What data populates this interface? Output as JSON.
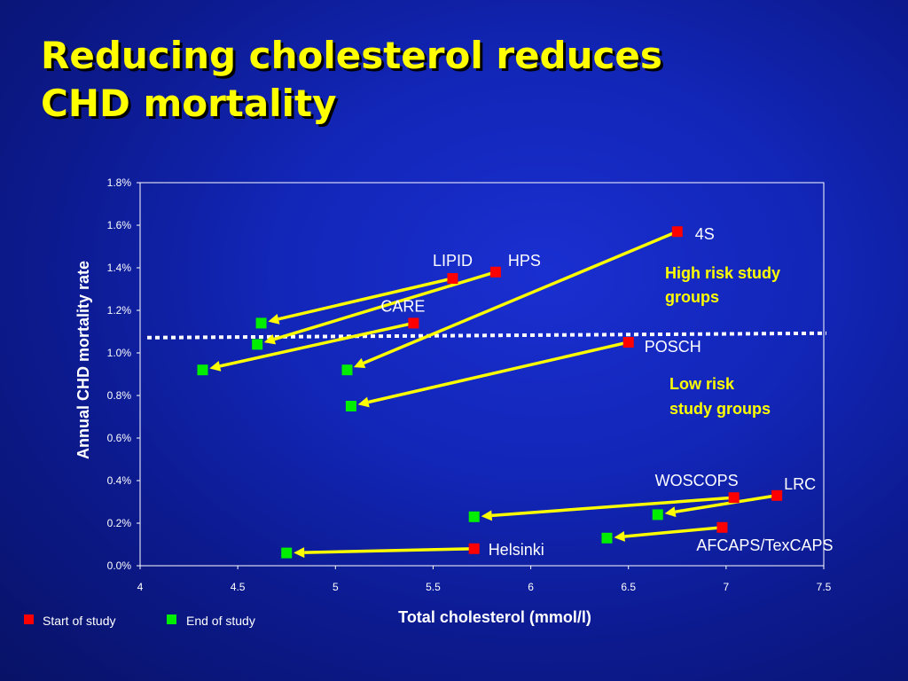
{
  "slide": {
    "title_line1": "Reducing cholesterol reduces",
    "title_line2": "CHD mortality"
  },
  "chart_data": {
    "type": "scatter",
    "xlabel": "Total cholesterol (mmol/l)",
    "ylabel": "Annual CHD mortality rate",
    "xlim": [
      4,
      7.5
    ],
    "ylim": [
      0,
      1.8
    ],
    "xticks": [
      "4",
      "4.5",
      "5",
      "5.5",
      "6",
      "6.5",
      "7",
      "7.5"
    ],
    "yticks": [
      "0.0%",
      "0.2%",
      "0.4%",
      "0.6%",
      "0.8%",
      "1.0%",
      "1.2%",
      "1.4%",
      "1.6%",
      "1.8%"
    ],
    "grid": false,
    "legend_position": "bottom-left",
    "series": [
      {
        "name": "Start of study",
        "color": "#ff0000"
      },
      {
        "name": "End of study",
        "color": "#00ee00"
      }
    ],
    "studies": [
      {
        "name": "4S",
        "start": [
          6.75,
          1.57
        ],
        "end": [
          5.06,
          0.92
        ]
      },
      {
        "name": "LIPID",
        "start": [
          5.6,
          1.35
        ],
        "end": [
          4.62,
          1.14
        ]
      },
      {
        "name": "HPS",
        "start": [
          5.82,
          1.38
        ],
        "end": [
          4.6,
          1.04
        ]
      },
      {
        "name": "CARE",
        "start": [
          5.4,
          1.14
        ],
        "end": [
          4.32,
          0.92
        ]
      },
      {
        "name": "POSCH",
        "start": [
          6.5,
          1.05
        ],
        "end": [
          5.08,
          0.75
        ]
      },
      {
        "name": "WOSCOPS",
        "start": [
          7.04,
          0.32
        ],
        "end": [
          5.71,
          0.23
        ]
      },
      {
        "name": "LRC",
        "start": [
          7.26,
          0.33
        ],
        "end": [
          6.65,
          0.24
        ]
      },
      {
        "name": "AFCAPS/TexCAPS",
        "start": [
          6.98,
          0.18
        ],
        "end": [
          6.39,
          0.13
        ]
      },
      {
        "name": "Helsinki",
        "start": [
          5.71,
          0.08
        ],
        "end": [
          4.75,
          0.06
        ]
      }
    ],
    "threshold_y": 1.08,
    "annotations": [
      {
        "text": "High risk study",
        "text2": "groups",
        "color": "#ffff00"
      },
      {
        "text": "Low risk",
        "text2": "study groups",
        "color": "#ffff00"
      }
    ]
  }
}
